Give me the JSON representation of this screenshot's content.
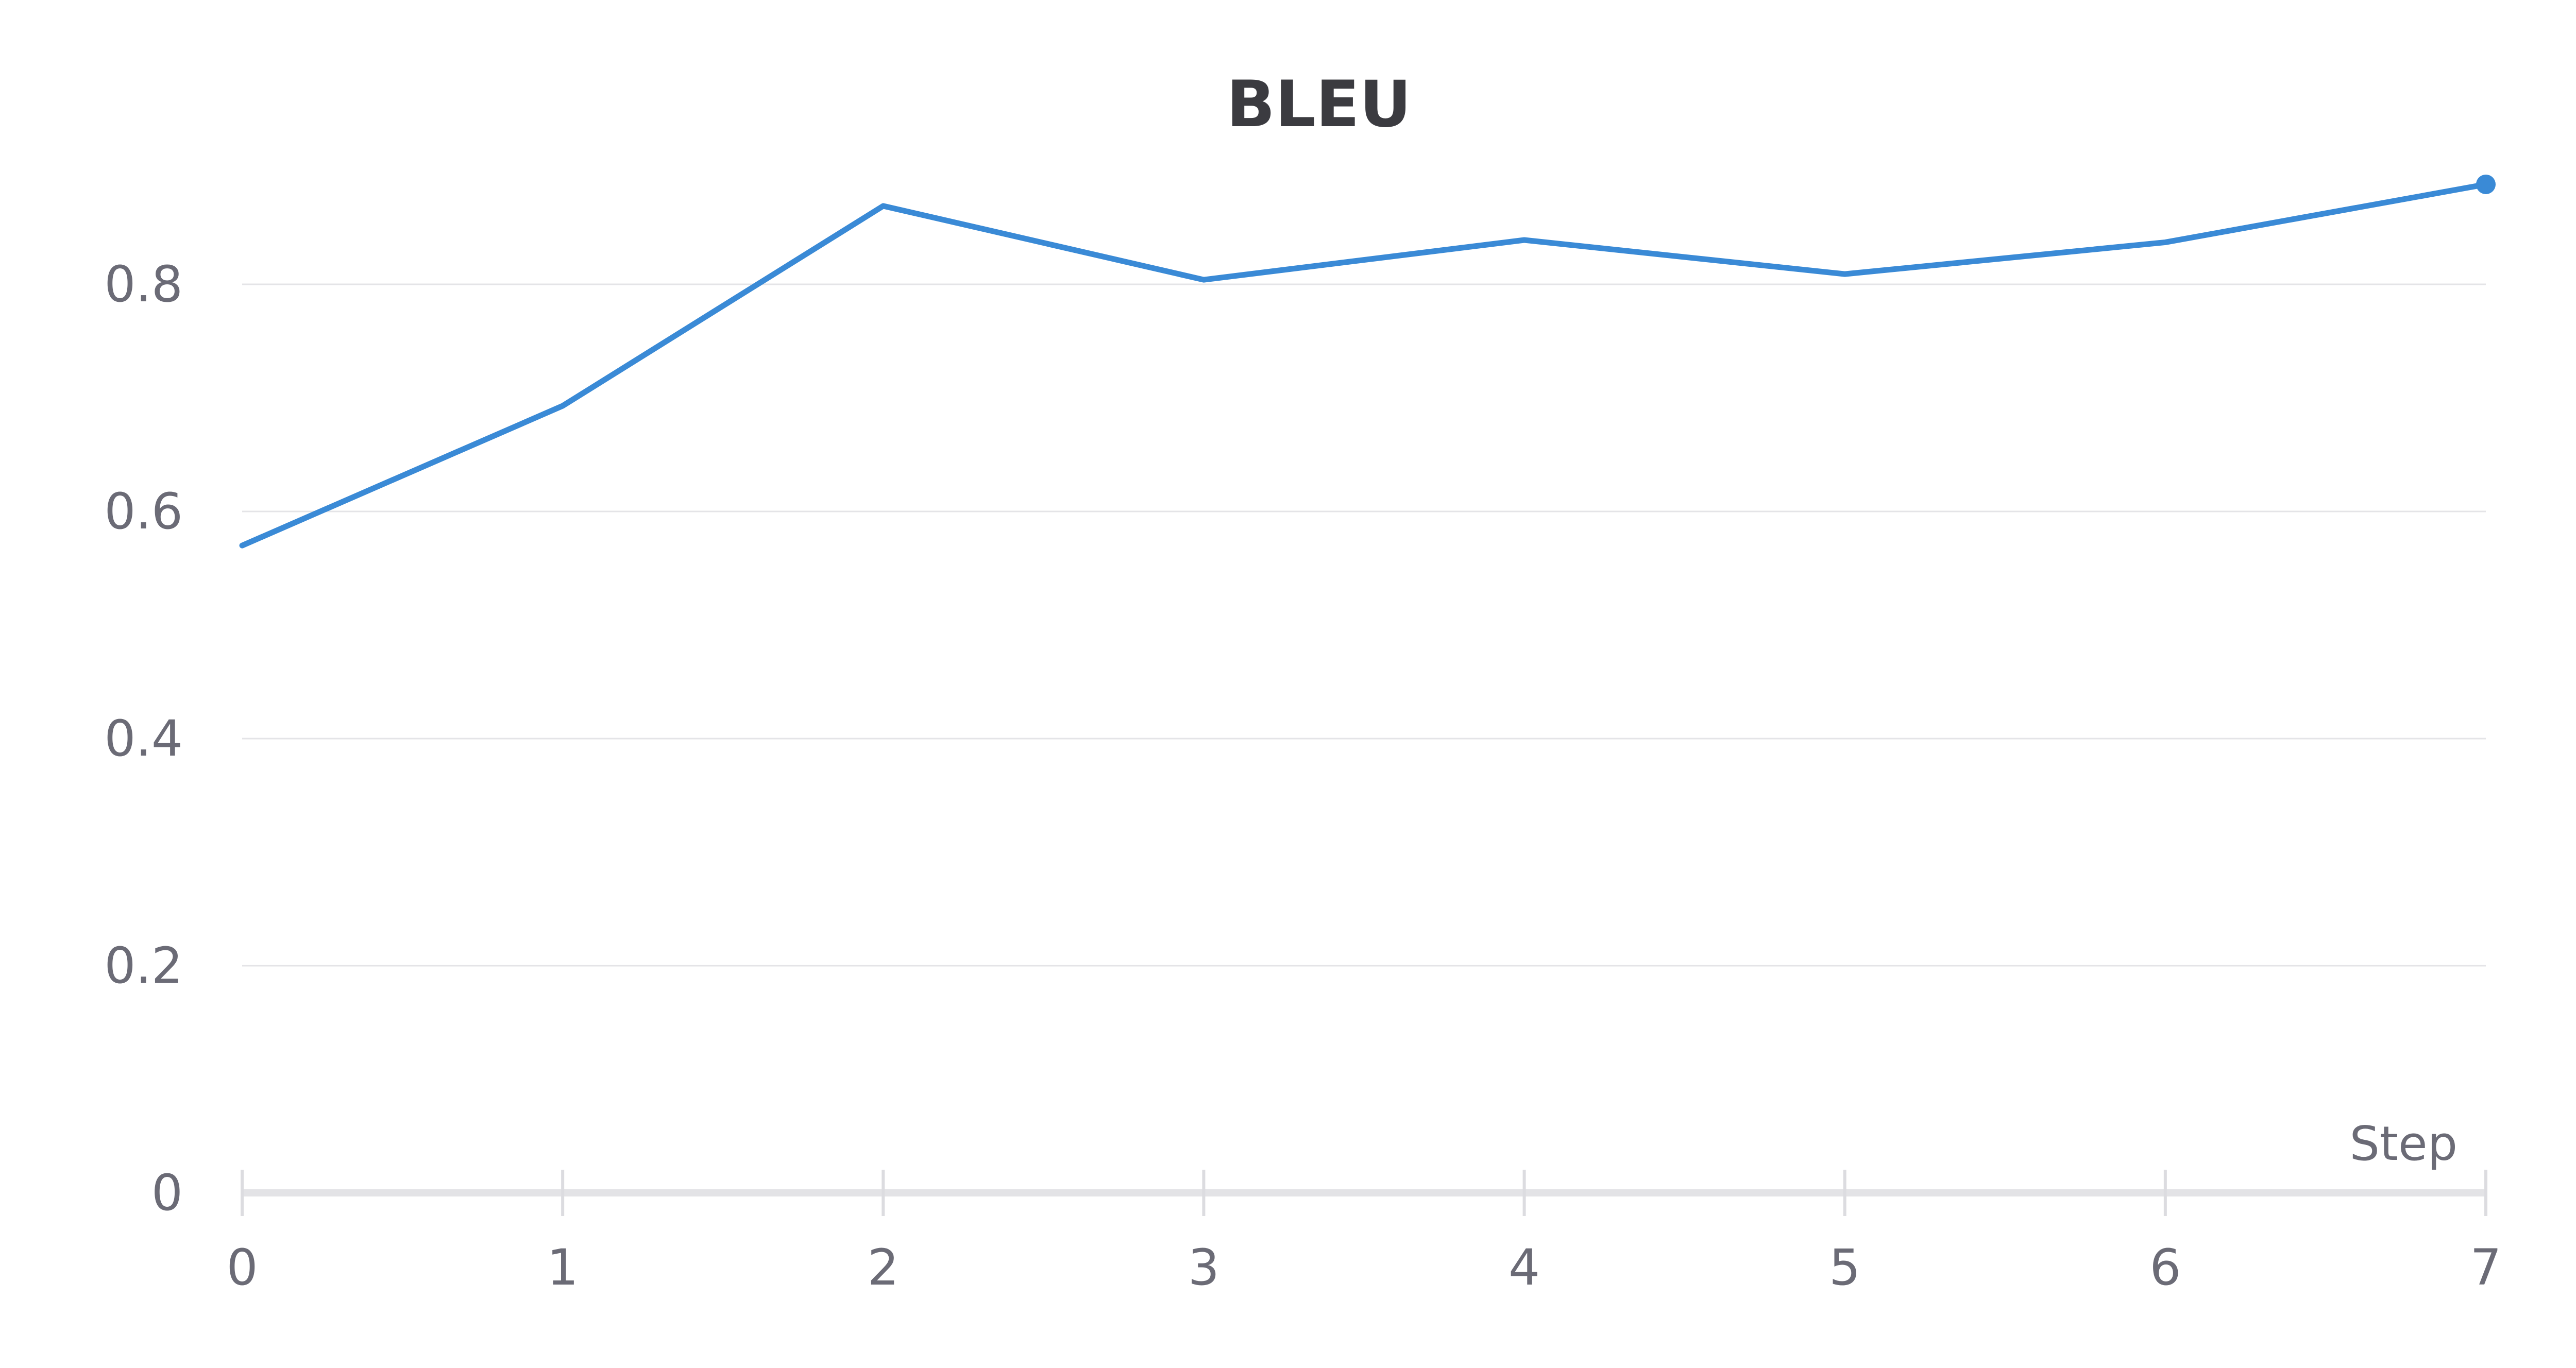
{
  "chart_data": {
    "type": "line",
    "title": "BLEU",
    "xlabel": "Step",
    "ylabel": "",
    "x": [
      0,
      1,
      2,
      3,
      4,
      5,
      6,
      7
    ],
    "x_ticks": [
      "0",
      "1",
      "2",
      "3",
      "4",
      "5",
      "6",
      "7"
    ],
    "y_ticks": [
      "0",
      "0.2",
      "0.4",
      "0.6",
      "0.8"
    ],
    "xlim": [
      0,
      7
    ],
    "ylim": [
      0,
      0.8
    ],
    "grid": true,
    "series": [
      {
        "values": [
          0.57,
          0.693,
          0.869,
          0.804,
          0.839,
          0.809,
          0.837,
          0.888
        ],
        "color": "#3a8ad6"
      }
    ]
  }
}
